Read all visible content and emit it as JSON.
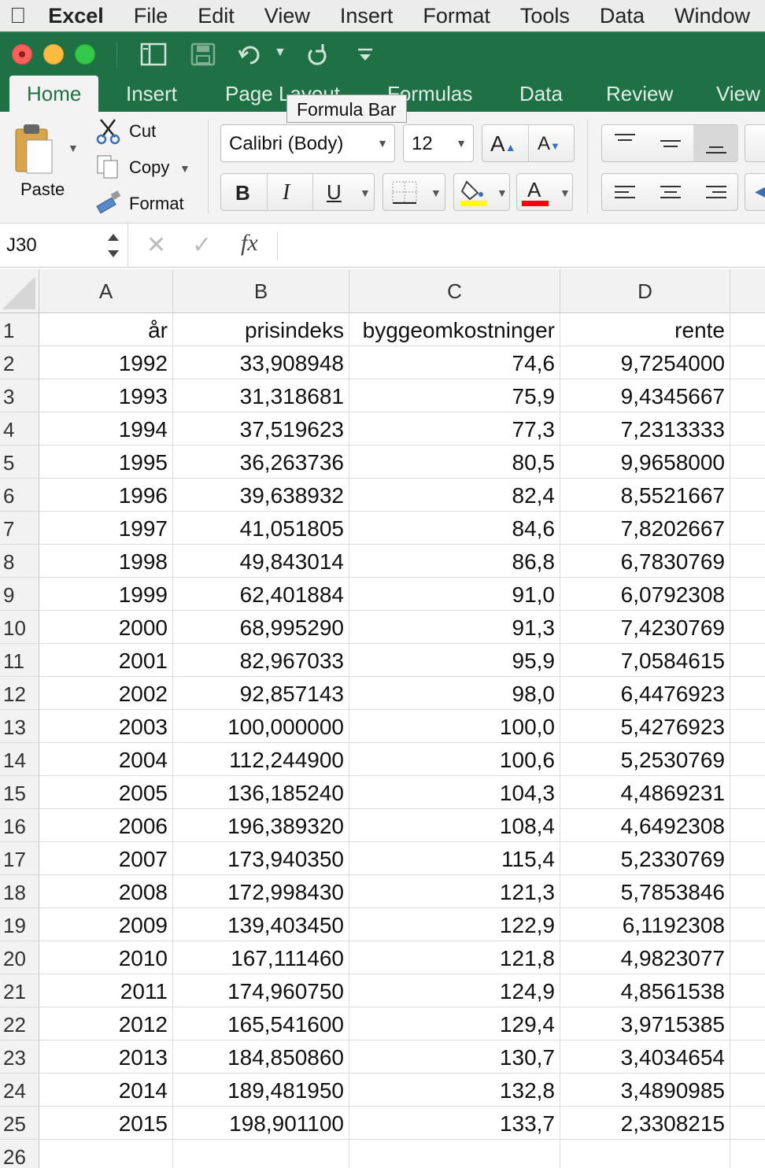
{
  "menubar": {
    "app_name": "Excel",
    "items": [
      "File",
      "Edit",
      "View",
      "Insert",
      "Format",
      "Tools",
      "Data",
      "Window"
    ]
  },
  "ribbon_tabs": [
    "Home",
    "Insert",
    "Page Layout",
    "Formulas",
    "Data",
    "Review",
    "View"
  ],
  "tooltip": "Formula Bar",
  "clipboard": {
    "paste_label": "Paste",
    "cut_label": "Cut",
    "copy_label": "Copy",
    "format_label": "Format"
  },
  "font": {
    "name": "Calibri (Body)",
    "size": "12",
    "bold": "B",
    "italic": "I",
    "underline": "U"
  },
  "formula_bar": {
    "name_box": "J30",
    "cancel_symbol": "✕",
    "enter_symbol": "✓",
    "fx_label": "fx",
    "content": ""
  },
  "sheet": {
    "columns": [
      "A",
      "B",
      "C",
      "D"
    ],
    "row_numbers": [
      "1",
      "2",
      "3",
      "4",
      "5",
      "6",
      "7",
      "8",
      "9",
      "10",
      "11",
      "12",
      "13",
      "14",
      "15",
      "16",
      "17",
      "18",
      "19",
      "20",
      "21",
      "22",
      "23",
      "24",
      "25",
      "26"
    ],
    "rows": [
      [
        "år",
        "prisindeks",
        "byggeomkostninger",
        "rente"
      ],
      [
        "1992",
        "33,908948",
        "74,6",
        "9,7254000"
      ],
      [
        "1993",
        "31,318681",
        "75,9",
        "9,4345667"
      ],
      [
        "1994",
        "37,519623",
        "77,3",
        "7,2313333"
      ],
      [
        "1995",
        "36,263736",
        "80,5",
        "9,9658000"
      ],
      [
        "1996",
        "39,638932",
        "82,4",
        "8,5521667"
      ],
      [
        "1997",
        "41,051805",
        "84,6",
        "7,8202667"
      ],
      [
        "1998",
        "49,843014",
        "86,8",
        "6,7830769"
      ],
      [
        "1999",
        "62,401884",
        "91,0",
        "6,0792308"
      ],
      [
        "2000",
        "68,995290",
        "91,3",
        "7,4230769"
      ],
      [
        "2001",
        "82,967033",
        "95,9",
        "7,0584615"
      ],
      [
        "2002",
        "92,857143",
        "98,0",
        "6,4476923"
      ],
      [
        "2003",
        "100,000000",
        "100,0",
        "5,4276923"
      ],
      [
        "2004",
        "112,244900",
        "100,6",
        "5,2530769"
      ],
      [
        "2005",
        "136,185240",
        "104,3",
        "4,4869231"
      ],
      [
        "2006",
        "196,389320",
        "108,4",
        "4,6492308"
      ],
      [
        "2007",
        "173,940350",
        "115,4",
        "5,2330769"
      ],
      [
        "2008",
        "172,998430",
        "121,3",
        "5,7853846"
      ],
      [
        "2009",
        "139,403450",
        "122,9",
        "6,1192308"
      ],
      [
        "2010",
        "167,111460",
        "121,8",
        "4,9823077"
      ],
      [
        "2011",
        "174,960750",
        "124,9",
        "4,8561538"
      ],
      [
        "2012",
        "165,541600",
        "129,4",
        "3,9715385"
      ],
      [
        "2013",
        "184,850860",
        "130,7",
        "3,4034654"
      ],
      [
        "2014",
        "189,481950",
        "132,8",
        "3,4890985"
      ],
      [
        "2015",
        "198,901100",
        "133,7",
        "2,3308215"
      ],
      [
        "",
        "",
        "",
        ""
      ]
    ]
  },
  "colors": {
    "excel_green": "#1f7145",
    "ribbon_bg": "#f3f3f3",
    "highlight_yellow": "#ffff00",
    "font_red": "#ff0000"
  }
}
